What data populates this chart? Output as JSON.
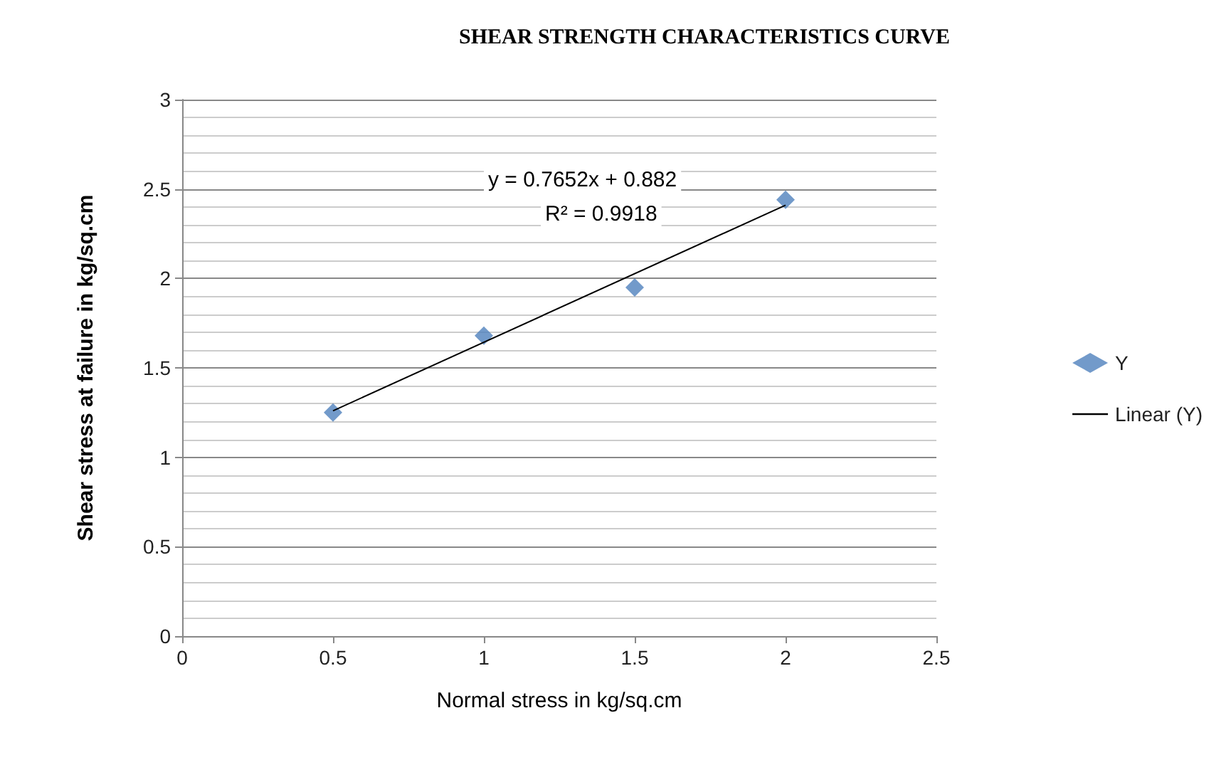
{
  "chart_data": {
    "type": "scatter",
    "title": "SHEAR STRENGTH CHARACTERISTICS CURVE",
    "xlabel": "Normal stress in kg/sq.cm",
    "ylabel": "Shear stress at failure in kg/sq.cm",
    "annotations": [
      "y = 0.7652x + 0.882",
      "R² = 0.9918"
    ],
    "x": [
      0.5,
      1,
      1.5,
      2
    ],
    "series": [
      {
        "name": "Y",
        "color": "#4f81bd",
        "marker": "diamond",
        "values": [
          1.25,
          1.68,
          1.95,
          2.44
        ]
      },
      {
        "name": "Linear (Y)",
        "type": "line",
        "color": "#000000",
        "marker": "none",
        "x": [
          0.5,
          2
        ],
        "values": [
          1.26,
          2.41
        ]
      }
    ],
    "xlim": [
      0,
      2.5
    ],
    "xticks": [
      0,
      0.5,
      1,
      1.5,
      2,
      2.5
    ],
    "ylim": [
      0,
      3
    ],
    "yticks": [
      0,
      0.5,
      1,
      1.5,
      2,
      2.5,
      3
    ],
    "grid": "y",
    "legend": "right"
  }
}
